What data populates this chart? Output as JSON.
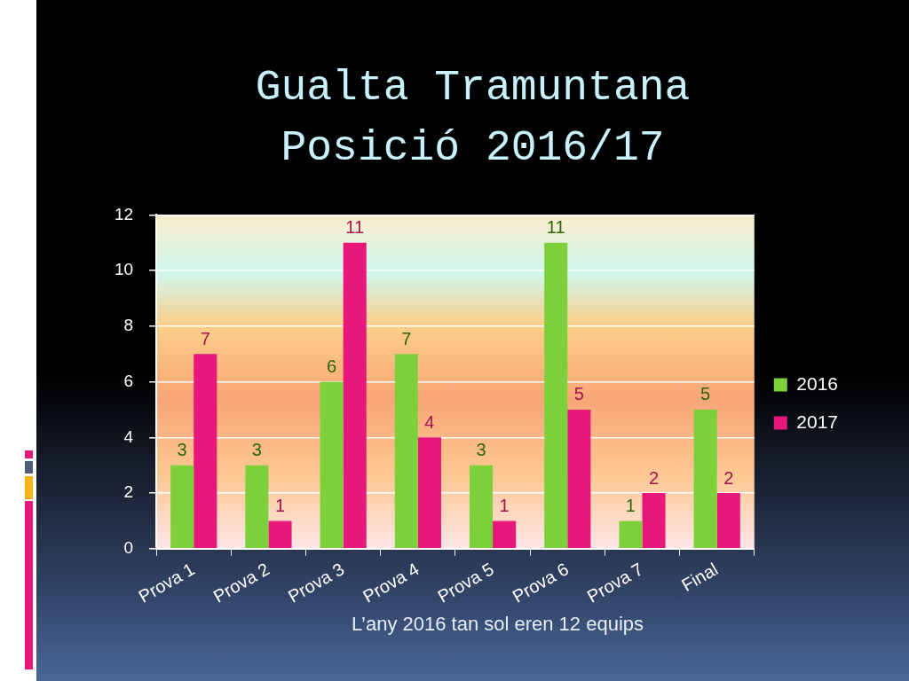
{
  "chart_data": {
    "type": "bar",
    "title": "Gualta Tramuntana\nPosició 2016/17",
    "categories": [
      "Prova 1",
      "Prova 2",
      "Prova 3",
      "Prova 4",
      "Prova 5",
      "Prova 6",
      "Prova 7",
      "Final"
    ],
    "series": [
      {
        "name": "2016",
        "color": "#7ed03a",
        "values": [
          3,
          3,
          6,
          7,
          3,
          11,
          1,
          5
        ]
      },
      {
        "name": "2017",
        "color": "#e8177a",
        "values": [
          7,
          1,
          11,
          4,
          1,
          5,
          2,
          2
        ]
      }
    ],
    "ylim": [
      0,
      12
    ],
    "yticks": [
      0,
      2,
      4,
      6,
      8,
      10,
      12
    ],
    "grid": "y",
    "legend": "right",
    "data_labels": true,
    "annotations": [
      "L’any 2016 tan sol eren 12 equips"
    ]
  }
}
